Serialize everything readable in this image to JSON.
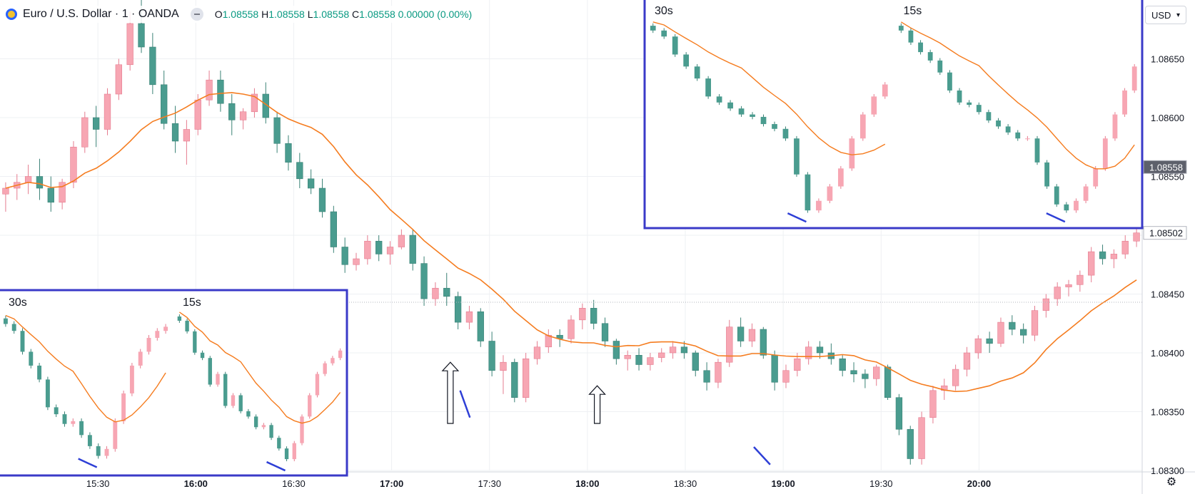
{
  "header": {
    "symbol_title": "Euro / U.S. Dollar · 1 · OANDA",
    "ohlc": [
      {
        "k": "O",
        "v": "1.08558"
      },
      {
        "k": "H",
        "v": "1.08558"
      },
      {
        "k": "L",
        "v": "1.08558"
      },
      {
        "k": "C",
        "v": "1.08558"
      },
      {
        "k": "",
        "v": "0.00000 (0.00%)"
      }
    ],
    "currency": "USD"
  },
  "colors": {
    "up": "#f7a6b3",
    "up_border": "#e57c8f",
    "down": "#4a9c8f",
    "down_border": "#3b8276",
    "ma": "#f57c1f",
    "inset_border": "#3a3ac8",
    "annotation_line": "#2e3fd6",
    "grid": "#eef0f3",
    "axis_text": "#131722"
  },
  "chart_data": [
    {
      "type": "candlestick",
      "title": "Euro / U.S. Dollar · 1 · OANDA",
      "x_ticks": [
        "15:30",
        "16:00",
        "16:30",
        "17:00",
        "17:30",
        "18:00",
        "18:30",
        "19:00",
        "19:30",
        "20:00"
      ],
      "x_tick_times": [
        930,
        960,
        990,
        1020,
        1050,
        1080,
        1110,
        1140,
        1170,
        1200
      ],
      "y_ticks": [
        "1.08650",
        "1.08600",
        "1.08550",
        "1.08500",
        "1.08450",
        "1.08400",
        "1.08350",
        "1.08300"
      ],
      "y_tick_values": [
        1.0865,
        1.086,
        1.0855,
        1.085,
        1.0845,
        1.084,
        1.0835,
        1.083
      ],
      "price_labels": [
        {
          "value": 1.08558,
          "label": "1.08558"
        },
        {
          "value": 1.08502,
          "label": "1.08502"
        }
      ],
      "ylim": [
        1.083,
        1.087
      ],
      "xlim_minutes": [
        900,
        1250
      ],
      "grid": true,
      "ohlc_minute_from": 900,
      "ohlc_minute_to": 1250,
      "candles": [
        [
          1.08535,
          1.08545,
          1.0852,
          1.0854
        ],
        [
          1.0854,
          1.08552,
          1.0853,
          1.08545
        ],
        [
          1.08545,
          1.0856,
          1.08535,
          1.0855
        ],
        [
          1.0855,
          1.08565,
          1.0853,
          1.0854
        ],
        [
          1.0854,
          1.0855,
          1.0852,
          1.08528
        ],
        [
          1.08528,
          1.08548,
          1.08522,
          1.08545
        ],
        [
          1.08545,
          1.0858,
          1.0854,
          1.08575
        ],
        [
          1.08575,
          1.08605,
          1.0857,
          1.086
        ],
        [
          1.086,
          1.0861,
          1.08575,
          1.0859
        ],
        [
          1.0859,
          1.08625,
          1.08585,
          1.0862
        ],
        [
          1.0862,
          1.0865,
          1.08615,
          1.08645
        ],
        [
          1.08645,
          1.0869,
          1.0864,
          1.0868
        ],
        [
          1.0868,
          1.087,
          1.08655,
          1.0866
        ],
        [
          1.0866,
          1.08672,
          1.0862,
          1.08628
        ],
        [
          1.08628,
          1.0864,
          1.0859,
          1.08595
        ],
        [
          1.08595,
          1.0861,
          1.0857,
          1.0858
        ],
        [
          1.0858,
          1.08598,
          1.0856,
          1.0859
        ],
        [
          1.0859,
          1.0862,
          1.08585,
          1.08615
        ],
        [
          1.08615,
          1.0864,
          1.0861,
          1.08632
        ],
        [
          1.08632,
          1.0864,
          1.08605,
          1.08612
        ],
        [
          1.08612,
          1.0862,
          1.08585,
          1.08598
        ],
        [
          1.08598,
          1.08608,
          1.0859,
          1.08605
        ],
        [
          1.08605,
          1.08625,
          1.086,
          1.0862
        ],
        [
          1.0862,
          1.0863,
          1.08595,
          1.086
        ],
        [
          1.086,
          1.08605,
          1.0857,
          1.08578
        ],
        [
          1.08578,
          1.08585,
          1.08555,
          1.08562
        ],
        [
          1.08562,
          1.0857,
          1.0854,
          1.08548
        ],
        [
          1.08548,
          1.08556,
          1.08535,
          1.0854
        ],
        [
          1.0854,
          1.08548,
          1.08515,
          1.0852
        ],
        [
          1.0852,
          1.08525,
          1.08485,
          1.0849
        ],
        [
          1.0849,
          1.08498,
          1.08468,
          1.08475
        ],
        [
          1.08475,
          1.08485,
          1.0847,
          1.0848
        ],
        [
          1.0848,
          1.085,
          1.08475,
          1.08495
        ],
        [
          1.08495,
          1.085,
          1.08478,
          1.08484
        ],
        [
          1.08484,
          1.08495,
          1.08475,
          1.0849
        ],
        [
          1.0849,
          1.08505,
          1.08488,
          1.085
        ],
        [
          1.085,
          1.08505,
          1.0847,
          1.08476
        ],
        [
          1.08476,
          1.08482,
          1.0844,
          1.08446
        ],
        [
          1.08446,
          1.0846,
          1.0844,
          1.08455
        ],
        [
          1.08455,
          1.08468,
          1.0844,
          1.08448
        ],
        [
          1.08448,
          1.08452,
          1.0842,
          1.08426
        ],
        [
          1.08426,
          1.0844,
          1.0842,
          1.08435
        ],
        [
          1.08435,
          1.08438,
          1.08405,
          1.0841
        ],
        [
          1.0841,
          1.08418,
          1.0838,
          1.08385
        ],
        [
          1.08385,
          1.08398,
          1.08365,
          1.08392
        ],
        [
          1.08392,
          1.08395,
          1.08358,
          1.08362
        ],
        [
          1.08362,
          1.084,
          1.08358,
          1.08395
        ],
        [
          1.08395,
          1.0841,
          1.0839,
          1.08405
        ],
        [
          1.08405,
          1.0842,
          1.084,
          1.08415
        ],
        [
          1.08415,
          1.0842,
          1.08405,
          1.08412
        ],
        [
          1.08412,
          1.08432,
          1.08408,
          1.08428
        ],
        [
          1.08428,
          1.08442,
          1.0842,
          1.08438
        ],
        [
          1.08438,
          1.08445,
          1.0842,
          1.08425
        ],
        [
          1.08425,
          1.0843,
          1.08405,
          1.0841
        ],
        [
          1.0841,
          1.08412,
          1.0839,
          1.08395
        ],
        [
          1.08395,
          1.08402,
          1.08385,
          1.08398
        ],
        [
          1.08398,
          1.08404,
          1.08385,
          1.0839
        ],
        [
          1.0839,
          1.084,
          1.08385,
          1.08396
        ],
        [
          1.08396,
          1.08404,
          1.08392,
          1.084
        ],
        [
          1.084,
          1.0841,
          1.08395,
          1.08405
        ],
        [
          1.08405,
          1.0841,
          1.08395,
          1.084
        ],
        [
          1.084,
          1.08402,
          1.0838,
          1.08385
        ],
        [
          1.08385,
          1.08392,
          1.08368,
          1.08375
        ],
        [
          1.08375,
          1.08395,
          1.0837,
          1.08392
        ],
        [
          1.08392,
          1.08428,
          1.08388,
          1.08422
        ],
        [
          1.08422,
          1.0843,
          1.08405,
          1.0841
        ],
        [
          1.0841,
          1.08425,
          1.08405,
          1.0842
        ],
        [
          1.0842,
          1.08422,
          1.08395,
          1.08398
        ],
        [
          1.08398,
          1.08402,
          1.08368,
          1.08375
        ],
        [
          1.08375,
          1.0839,
          1.0837,
          1.08385
        ],
        [
          1.08385,
          1.084,
          1.0838,
          1.08395
        ],
        [
          1.08395,
          1.0841,
          1.0839,
          1.08405
        ],
        [
          1.08405,
          1.0841,
          1.08395,
          1.084
        ],
        [
          1.084,
          1.08408,
          1.0839,
          1.08395
        ],
        [
          1.08395,
          1.08398,
          1.0838,
          1.08385
        ],
        [
          1.08385,
          1.08392,
          1.08375,
          1.08382
        ],
        [
          1.08382,
          1.08386,
          1.0837,
          1.08378
        ],
        [
          1.08378,
          1.0839,
          1.08372,
          1.08388
        ],
        [
          1.08388,
          1.0839,
          1.0836,
          1.08362
        ],
        [
          1.08362,
          1.08365,
          1.0833,
          1.08335
        ],
        [
          1.08335,
          1.08338,
          1.08305,
          1.0831
        ],
        [
          1.0831,
          1.0835,
          1.08305,
          1.08345
        ],
        [
          1.08345,
          1.08372,
          1.0834,
          1.08368
        ],
        [
          1.08368,
          1.08378,
          1.0836,
          1.08372
        ],
        [
          1.08372,
          1.0839,
          1.08368,
          1.08386
        ],
        [
          1.08386,
          1.08405,
          1.0838,
          1.084
        ],
        [
          1.084,
          1.08415,
          1.08395,
          1.08412
        ],
        [
          1.08412,
          1.08418,
          1.084,
          1.08408
        ],
        [
          1.08408,
          1.0843,
          1.08405,
          1.08426
        ],
        [
          1.08426,
          1.08432,
          1.08415,
          1.0842
        ],
        [
          1.0842,
          1.08425,
          1.08408,
          1.08415
        ],
        [
          1.08415,
          1.0844,
          1.0841,
          1.08436
        ],
        [
          1.08436,
          1.0845,
          1.0843,
          1.08446
        ],
        [
          1.08446,
          1.0846,
          1.0844,
          1.08456
        ],
        [
          1.08456,
          1.08462,
          1.08448,
          1.08458
        ],
        [
          1.08458,
          1.0847,
          1.08452,
          1.08466
        ],
        [
          1.08466,
          1.0849,
          1.0846,
          1.08486
        ],
        [
          1.08486,
          1.08492,
          1.08475,
          1.0848
        ],
        [
          1.0848,
          1.08488,
          1.08472,
          1.08484
        ],
        [
          1.08484,
          1.085,
          1.0848,
          1.08495
        ],
        [
          1.08495,
          1.08512,
          1.0849,
          1.08502
        ]
      ],
      "ma_period": 12,
      "annotations": [
        {
          "type": "arrow-up",
          "time": 1038,
          "from": 1.0834,
          "to": 1.08392
        },
        {
          "type": "arrow-up",
          "time": 1083,
          "from": 1.0834,
          "to": 1.08372
        },
        {
          "type": "line",
          "from_time": 1041,
          "from_value": 1.08368,
          "to_time": 1044,
          "to_value": 1.08345
        },
        {
          "type": "line",
          "from_time": 1131,
          "from_value": 1.0832,
          "to_time": 1136,
          "to_value": 1.08305
        }
      ]
    },
    {
      "type": "candlestick",
      "inset": "bottom-left",
      "panels": [
        {
          "label": "30s",
          "candles_values": [
            1.0866,
            1.08655,
            1.0864,
            1.0863,
            1.0862,
            1.086,
            1.08595,
            1.08588,
            1.0859,
            1.0858,
            1.08572,
            1.08565,
            1.0857,
            1.0859,
            1.0861,
            1.0863,
            1.0864,
            1.0865,
            1.08655,
            1.08658
          ]
        },
        {
          "label": "15s",
          "candles_values": [
            1.0869,
            1.0868,
            1.0866,
            1.08655,
            1.0863,
            1.0864,
            1.0861,
            1.0862,
            1.08605,
            1.086,
            1.0859,
            1.08592,
            1.0858,
            1.0857,
            1.0856,
            1.08575,
            1.086,
            1.0862,
            1.0864,
            1.0865,
            1.08655,
            1.08662
          ]
        }
      ]
    },
    {
      "type": "candlestick",
      "inset": "top-right",
      "panels": [
        {
          "label": "30s",
          "candles_values": [
            1.0869,
            1.08685,
            1.0867,
            1.0866,
            1.0865,
            1.08635,
            1.0863,
            1.08625,
            1.0862,
            1.08618,
            1.08612,
            1.08608,
            1.086,
            1.0857,
            1.0854,
            1.08548,
            1.0856,
            1.08575,
            1.086,
            1.0862,
            1.08635,
            1.08645
          ]
        },
        {
          "label": "15s",
          "candles_values": [
            1.0869,
            1.0868,
            1.08672,
            1.08665,
            1.08655,
            1.0864,
            1.0863,
            1.08628,
            1.08622,
            1.08615,
            1.0861,
            1.08605,
            1.086,
            1.086,
            1.0858,
            1.0856,
            1.08545,
            1.0854,
            1.08548,
            1.0856,
            1.08575,
            1.086,
            1.0862,
            1.0864,
            1.0866
          ]
        }
      ]
    }
  ]
}
